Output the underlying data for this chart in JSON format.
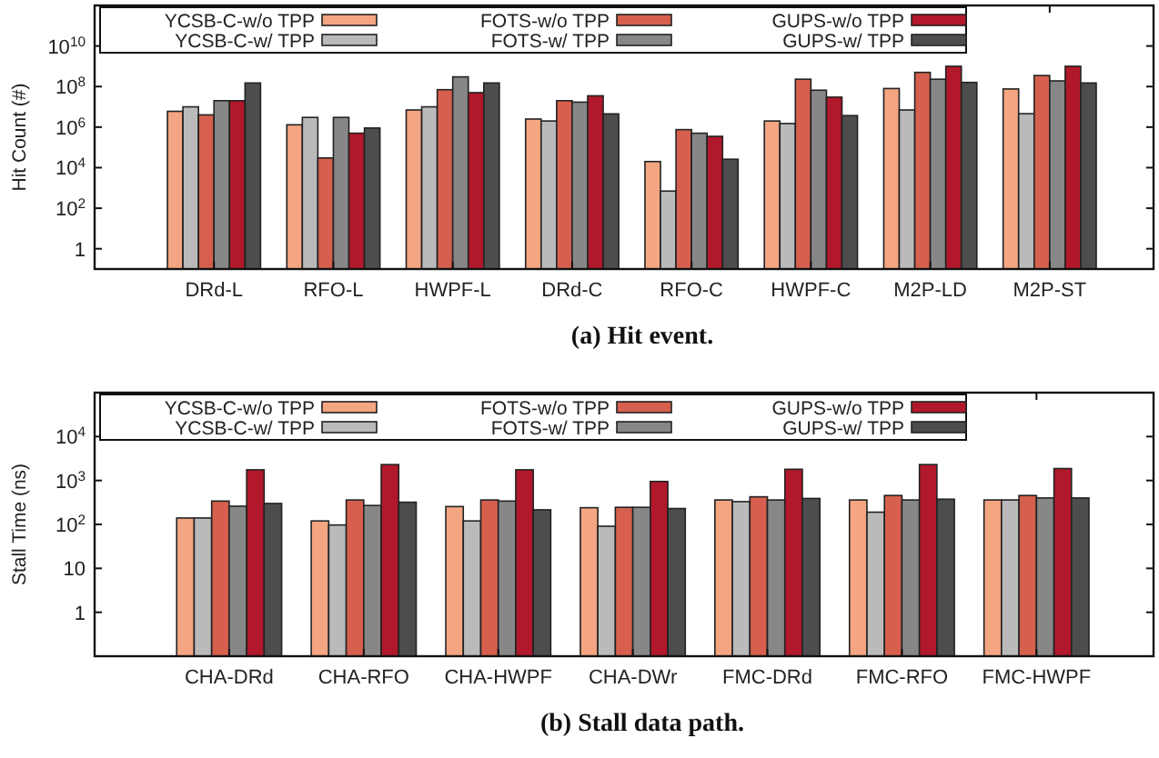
{
  "chart_data": [
    {
      "type": "bar",
      "title": "(a) Hit event.",
      "ylabel": "Hit Count (#)",
      "log": true,
      "grid": false,
      "legend": "top",
      "categories": [
        "DRd-L",
        "RFO-L",
        "HWPF-L",
        "DRd-C",
        "RFO-C",
        "HWPF-C",
        "M2P-LD",
        "M2P-ST"
      ],
      "ylim": [
        0.1,
        1000000000000.0
      ],
      "yticks": [
        {
          "value": 1,
          "label": "1"
        },
        {
          "value": 100,
          "label": "10$^{2}$"
        },
        {
          "value": 10000,
          "label": "10$^{4}$"
        },
        {
          "value": 1000000,
          "label": "10$^{6}$"
        },
        {
          "value": 100000000,
          "label": "10$^{8}$"
        },
        {
          "value": 10000000000,
          "label": "10$^{10}$"
        }
      ],
      "series": [
        {
          "name": "YCSB-C-w/o TPP",
          "color": "#f4a582",
          "values": [
            6000000.0,
            1300000.0,
            7000000.0,
            2500000.0,
            20000.0,
            2000000.0,
            80000000.0,
            76000000.0
          ]
        },
        {
          "name": "YCSB-C-w/ TPP",
          "color": "#bababa",
          "values": [
            10000000.0,
            3000000.0,
            10000000.0,
            2000000.0,
            700,
            1500000.0,
            7000000.0,
            4600000.0
          ]
        },
        {
          "name": "FOTS-w/o TPP",
          "color": "#d6604d",
          "values": [
            4000000.0,
            30000.0,
            70000000.0,
            20000000.0,
            750000.0,
            230000000.0,
            500000000.0,
            350000000.0
          ]
        },
        {
          "name": "FOTS-w/ TPP",
          "color": "#878787",
          "values": [
            20000000.0,
            3000000.0,
            300000000.0,
            17000000.0,
            500000.0,
            66000000.0,
            230000000.0,
            190000000.0
          ]
        },
        {
          "name": "GUPS-w/o TPP",
          "color": "#b2182b",
          "values": [
            20000000.0,
            500000.0,
            50000000.0,
            35000000.0,
            350000.0,
            30000000.0,
            1000000000.0,
            1000000000.0
          ]
        },
        {
          "name": "GUPS-w/ TPP",
          "color": "#4d4d4d",
          "values": [
            150000000.0,
            900000.0,
            150000000.0,
            4500000.0,
            26000.0,
            3700000.0,
            160000000.0,
            150000000.0
          ]
        }
      ]
    },
    {
      "type": "bar",
      "title": "(b) Stall data path.",
      "ylabel": "Stall Time (ns)",
      "log": true,
      "grid": false,
      "legend": "top",
      "categories": [
        "CHA-DRd",
        "CHA-RFO",
        "CHA-HWPF",
        "CHA-DWr",
        "FMC-DRd",
        "FMC-RFO",
        "FMC-HWPF"
      ],
      "ylim": [
        0.1,
        100000
      ],
      "yticks": [
        {
          "value": 1,
          "label": "1"
        },
        {
          "value": 10,
          "label": "10"
        },
        {
          "value": 100,
          "label": "10$^{2}$"
        },
        {
          "value": 1000,
          "label": "10$^{3}$"
        },
        {
          "value": 10000,
          "label": "10$^{4}$"
        }
      ],
      "series": [
        {
          "name": "YCSB-C-w/o TPP",
          "color": "#f4a582",
          "values": [
            140,
            120,
            255,
            240,
            360,
            360,
            360
          ]
        },
        {
          "name": "YCSB-C-w/ TPP",
          "color": "#bababa",
          "values": [
            140,
            97,
            120,
            91,
            330,
            190,
            360
          ]
        },
        {
          "name": "FOTS-w/o TPP",
          "color": "#d6604d",
          "values": [
            340,
            360,
            360,
            245,
            425,
            455,
            455
          ]
        },
        {
          "name": "FOTS-w/ TPP",
          "color": "#878787",
          "values": [
            260,
            270,
            340,
            245,
            360,
            360,
            400
          ]
        },
        {
          "name": "GUPS-w/o TPP",
          "color": "#b2182b",
          "values": [
            1750,
            2300,
            1750,
            950,
            1800,
            2300,
            1870
          ]
        },
        {
          "name": "GUPS-w/ TPP",
          "color": "#4d4d4d",
          "values": [
            300,
            320,
            215,
            230,
            390,
            375,
            400
          ]
        }
      ]
    }
  ]
}
